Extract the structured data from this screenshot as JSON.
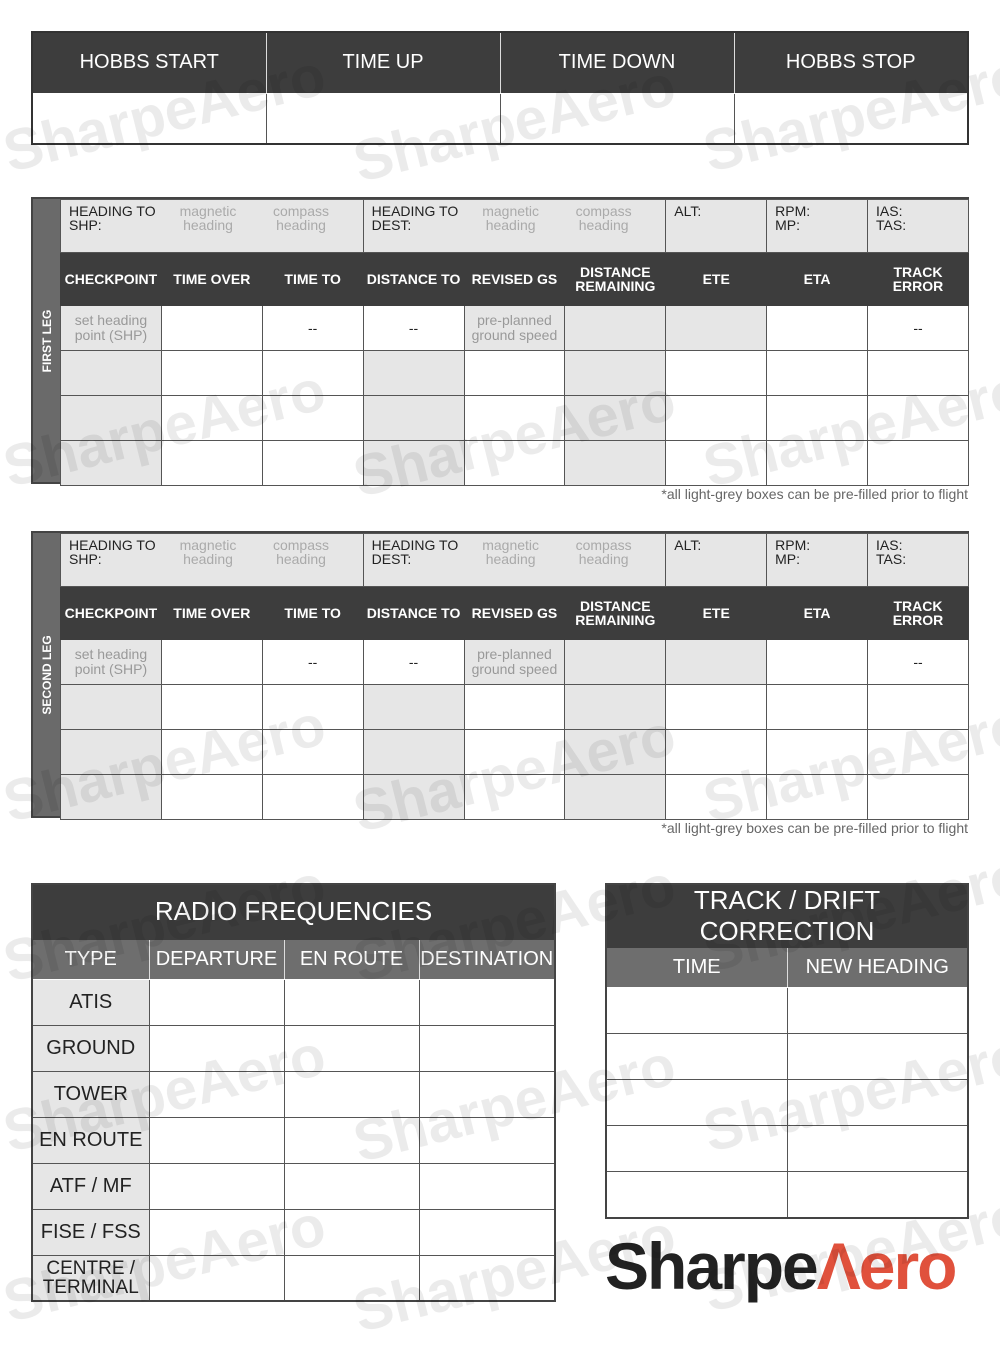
{
  "hobbs": {
    "headers": [
      "HOBBS START",
      "TIME UP",
      "TIME DOWN",
      "HOBBS STOP"
    ]
  },
  "legs": [
    {
      "label": "FIRST LEG"
    },
    {
      "label": "SECOND LEG"
    }
  ],
  "leg_template": {
    "heading_shp": "HEADING TO SHP:",
    "heading_dest": "HEADING TO DEST:",
    "magnetic": "magnetic heading",
    "compass": "compass heading",
    "alt": "ALT:",
    "rpm": "RPM: MP:",
    "ias": "IAS: TAS:",
    "columns": [
      "CHECKPOINT",
      "TIME OVER",
      "TIME TO",
      "DISTANCE TO",
      "REVISED GS",
      "DISTANCE REMAINING",
      "ETE",
      "ETA",
      "TRACK ERROR"
    ],
    "first_row": [
      "set heading point (SHP)",
      "",
      "--",
      "--",
      "pre-planned ground speed",
      "",
      "",
      "",
      "--"
    ],
    "note": "*all light-grey boxes can be pre-filled prior to flight"
  },
  "radio": {
    "title": "RADIO FREQUENCIES",
    "headers": [
      "TYPE",
      "DEPARTURE",
      "EN ROUTE",
      "DESTINATION"
    ],
    "types": [
      "ATIS",
      "GROUND",
      "TOWER",
      "EN ROUTE",
      "ATF / MF",
      "FISE / FSS",
      "CENTRE / TERMINAL"
    ]
  },
  "track": {
    "title": "TRACK / DRIFT CORRECTION",
    "headers": [
      "TIME",
      "NEW HEADING"
    ],
    "rows": 5
  },
  "logo": {
    "text": "SharpeAero",
    "part1": "Sharpe",
    "part2": "Λero",
    "accent": "#e0513c"
  },
  "colors": {
    "dark": "#3d3d3d",
    "mid": "#6e6e6e",
    "light_grey": "#e6e6e6"
  }
}
